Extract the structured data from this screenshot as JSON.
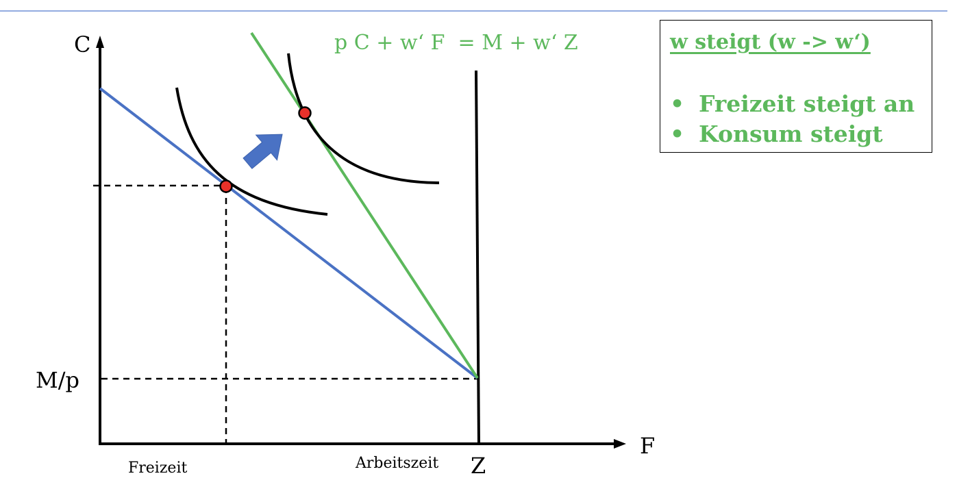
{
  "colors": {
    "header_rule": "#6f8fd6",
    "axis": "#000000",
    "budget_old": "#4a72c4",
    "budget_new": "#5cb85c",
    "optimum_point": "#e8312a",
    "arrow": "#4a72c4",
    "text_green": "#5cb85c"
  },
  "axes": {
    "y_label": "C",
    "x_label": "F",
    "y_intercept_label": "M/p",
    "z_label": "Z",
    "freizeit_label": "Freizeit",
    "arbeitszeit_label": "Arbeitszeit"
  },
  "equation": "p C + w‘ F  = M + w‘ Z",
  "info_box": {
    "title": "w steigt (w -> w‘)",
    "items": [
      {
        "bullet": "•",
        "text": "Freizeit steigt an"
      },
      {
        "bullet": "•",
        "text": "Konsum steigt"
      }
    ]
  },
  "icons": {
    "shift_arrow": "arrow-up-right-icon"
  }
}
